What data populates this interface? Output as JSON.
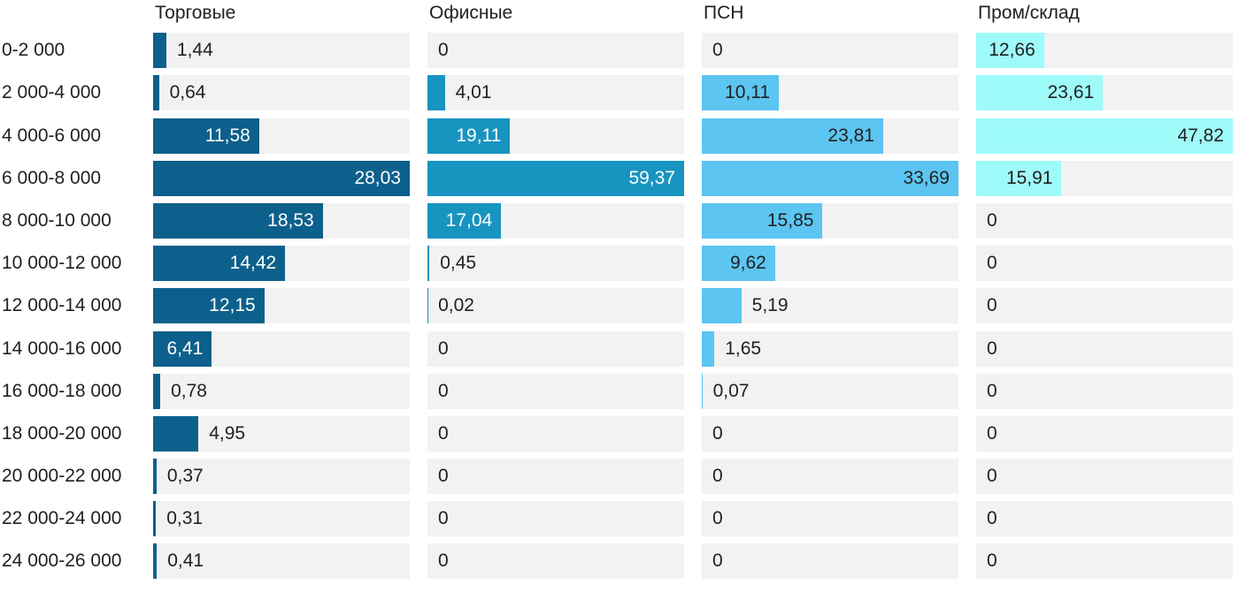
{
  "chart_data": {
    "type": "bar",
    "orientation": "horizontal",
    "layout": "small-multiples",
    "title": "",
    "xlabel": "",
    "ylabel": "",
    "grid": false,
    "legend": false,
    "scaling": "each panel scaled to its own max value",
    "value_label_decimal_separator": ",",
    "track_color": "#f2f2f2",
    "text_color": "#212121",
    "categories": [
      "0-2 000",
      "2 000-4 000",
      "4 000-6 000",
      "6 000-8 000",
      "8 000-10 000",
      "10 000-12 000",
      "12 000-14 000",
      "14 000-16 000",
      "16 000-18 000",
      "18 000-20 000",
      "20 000-22 000",
      "22 000-24 000",
      "24 000-26 000"
    ],
    "series": [
      {
        "name": "Торговые",
        "color": "#0d608c",
        "label_inside_color": "#ffffff",
        "values": [
          1.44,
          0.64,
          11.58,
          28.03,
          18.53,
          14.42,
          12.15,
          6.41,
          0.78,
          4.95,
          0.37,
          0.31,
          0.41
        ]
      },
      {
        "name": "Офисные",
        "color": "#1794c0",
        "label_inside_color": "#ffffff",
        "values": [
          0,
          4.01,
          19.11,
          59.37,
          17.04,
          0.45,
          0.02,
          0,
          0,
          0,
          0,
          0,
          0
        ]
      },
      {
        "name": "ПСН",
        "color": "#5cc5f2",
        "label_inside_color": "#212121",
        "values": [
          0,
          10.11,
          23.81,
          33.69,
          15.85,
          9.62,
          5.19,
          1.65,
          0.07,
          0,
          0,
          0,
          0
        ]
      },
      {
        "name": "Пром/склад",
        "color": "#9ffafa",
        "label_inside_color": "#212121",
        "values": [
          12.66,
          23.61,
          47.82,
          15.91,
          0,
          0,
          0,
          0,
          0,
          0,
          0,
          0,
          0
        ]
      }
    ]
  }
}
